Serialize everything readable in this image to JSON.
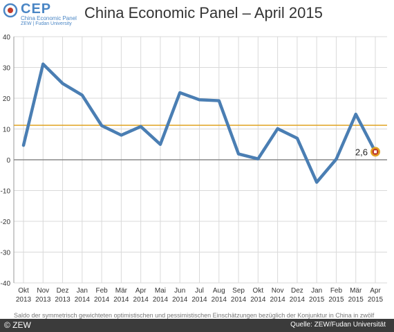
{
  "logo": {
    "text": "CEP",
    "subtitle1": "China Economic Panel",
    "subtitle2": "ZEW | Fudan University"
  },
  "title": "China Economic Panel – April 2015",
  "footer": {
    "copyright": "© ZEW",
    "note": "Saldo der symmetrisch gewichteten optimistischen und pessimistischen Einschätzungen bezüglich der Konjunktur in China in zwölf",
    "source": "Quelle: ZEW/Fudan Universität"
  },
  "colors": {
    "line": "#4a7eb3",
    "mean": "#e0a322",
    "zero": "#888888",
    "marker": "#c0392b",
    "grid": "#d9d9d9"
  },
  "chart_data": {
    "type": "line",
    "title": "China Economic Panel – April 2015",
    "categories": [
      [
        "Okt",
        "2013"
      ],
      [
        "Nov",
        "2013"
      ],
      [
        "Dez",
        "2013"
      ],
      [
        "Jan",
        "2014"
      ],
      [
        "Feb",
        "2014"
      ],
      [
        "Mär",
        "2014"
      ],
      [
        "Apr",
        "2014"
      ],
      [
        "Mai",
        "2014"
      ],
      [
        "Jun",
        "2014"
      ],
      [
        "Jul",
        "2014"
      ],
      [
        "Aug",
        "2014"
      ],
      [
        "Sep",
        "2014"
      ],
      [
        "Okt",
        "2014"
      ],
      [
        "Nov",
        "2014"
      ],
      [
        "Dez",
        "2014"
      ],
      [
        "Jan",
        "2015"
      ],
      [
        "Feb",
        "2015"
      ],
      [
        "Mär",
        "2015"
      ],
      [
        "Apr",
        "2015"
      ]
    ],
    "series": [
      {
        "values": [
          4.7,
          31.1,
          24.8,
          21.0,
          11.1,
          8.0,
          10.8,
          5.0,
          21.8,
          19.5,
          19.2,
          1.9,
          0.3,
          10.1,
          7.0,
          -7.3,
          0.2,
          14.8,
          2.6
        ]
      }
    ],
    "mean_line": 11.2,
    "last_label": "2,6",
    "ylim": [
      -40,
      40
    ],
    "yticks": [
      40,
      30,
      20,
      10,
      0,
      -10,
      -20,
      -30,
      -40
    ],
    "grid": true
  }
}
